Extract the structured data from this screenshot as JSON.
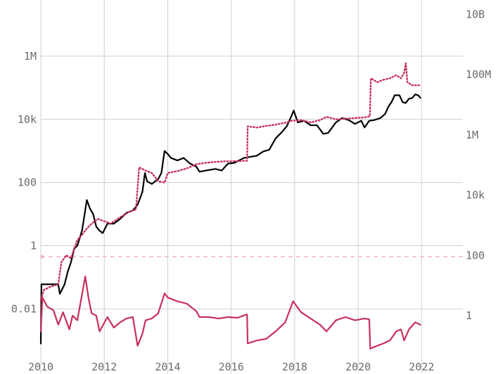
{
  "chart_data": {
    "type": "line",
    "title": "",
    "xlabel": "",
    "ylabel": "",
    "x_ticks": [
      "2010",
      "2012",
      "2014",
      "2016",
      "2018",
      "2020",
      "2022"
    ],
    "y_left_ticks": [
      "0.01",
      "1",
      "100",
      "10k",
      "1M"
    ],
    "y_right_ticks": [
      "1",
      "100",
      "10k",
      "1M",
      "100M",
      "10B"
    ],
    "xlim": [
      2010.0,
      2023.3
    ],
    "ylim_left": [
      0.00055,
      60000000
    ],
    "ylim_right": [
      0.08,
      30000000000
    ],
    "y_scale": "log",
    "grid": true,
    "colors": {
      "price": "#000000",
      "model": "#c8305b",
      "ratio": "#c8305b",
      "reference": "#f2b3c3"
    },
    "series": [
      {
        "axis": "left",
        "style": "solid",
        "color": "#000000",
        "points": [
          [
            2010.0,
            0.0008
          ],
          [
            2010.02,
            0.06
          ],
          [
            2010.3,
            0.06
          ],
          [
            2010.55,
            0.06
          ],
          [
            2010.6,
            0.03
          ],
          [
            2010.75,
            0.06
          ],
          [
            2010.85,
            0.15
          ],
          [
            2010.95,
            0.3
          ],
          [
            2011.05,
            0.8
          ],
          [
            2011.15,
            1.0
          ],
          [
            2011.3,
            3.0
          ],
          [
            2011.38,
            10
          ],
          [
            2011.45,
            28
          ],
          [
            2011.55,
            15
          ],
          [
            2011.65,
            10
          ],
          [
            2011.75,
            4
          ],
          [
            2011.85,
            3
          ],
          [
            2011.95,
            2.5
          ],
          [
            2012.1,
            5
          ],
          [
            2012.3,
            5
          ],
          [
            2012.5,
            7
          ],
          [
            2012.7,
            11
          ],
          [
            2012.9,
            13
          ],
          [
            2013.05,
            20
          ],
          [
            2013.2,
            50
          ],
          [
            2013.28,
            200
          ],
          [
            2013.35,
            110
          ],
          [
            2013.5,
            90
          ],
          [
            2013.7,
            130
          ],
          [
            2013.8,
            200
          ],
          [
            2013.9,
            1000
          ],
          [
            2014.0,
            800
          ],
          [
            2014.1,
            600
          ],
          [
            2014.3,
            500
          ],
          [
            2014.5,
            600
          ],
          [
            2014.7,
            400
          ],
          [
            2014.9,
            320
          ],
          [
            2015.0,
            220
          ],
          [
            2015.2,
            240
          ],
          [
            2015.5,
            270
          ],
          [
            2015.7,
            240
          ],
          [
            2015.9,
            400
          ],
          [
            2016.1,
            420
          ],
          [
            2016.4,
            600
          ],
          [
            2016.6,
            650
          ],
          [
            2016.8,
            700
          ],
          [
            2017.0,
            950
          ],
          [
            2017.2,
            1100
          ],
          [
            2017.4,
            2500
          ],
          [
            2017.6,
            4000
          ],
          [
            2017.75,
            6000
          ],
          [
            2017.9,
            13000
          ],
          [
            2017.97,
            19000
          ],
          [
            2018.1,
            8000
          ],
          [
            2018.3,
            9000
          ],
          [
            2018.5,
            6500
          ],
          [
            2018.7,
            6500
          ],
          [
            2018.9,
            3500
          ],
          [
            2019.05,
            3700
          ],
          [
            2019.3,
            8000
          ],
          [
            2019.5,
            11000
          ],
          [
            2019.7,
            9500
          ],
          [
            2019.9,
            7200
          ],
          [
            2020.1,
            9000
          ],
          [
            2020.2,
            5500
          ],
          [
            2020.35,
            9000
          ],
          [
            2020.5,
            9500
          ],
          [
            2020.7,
            11000
          ],
          [
            2020.85,
            15000
          ],
          [
            2020.95,
            25000
          ],
          [
            2021.05,
            35000
          ],
          [
            2021.15,
            58000
          ],
          [
            2021.3,
            58000
          ],
          [
            2021.4,
            35000
          ],
          [
            2021.5,
            33000
          ],
          [
            2021.6,
            45000
          ],
          [
            2021.7,
            47000
          ],
          [
            2021.8,
            62000
          ],
          [
            2021.9,
            57000
          ],
          [
            2021.96,
            48000
          ]
        ]
      },
      {
        "axis": "left",
        "style": "dotted",
        "color": "#c8305b",
        "points": [
          [
            2010.0,
            0.02
          ],
          [
            2010.1,
            0.04
          ],
          [
            2010.3,
            0.05
          ],
          [
            2010.55,
            0.06
          ],
          [
            2010.65,
            0.3
          ],
          [
            2010.8,
            0.5
          ],
          [
            2010.95,
            0.4
          ],
          [
            2011.05,
            0.8
          ],
          [
            2011.15,
            1.5
          ],
          [
            2011.3,
            2.2
          ],
          [
            2011.45,
            3.5
          ],
          [
            2011.6,
            5
          ],
          [
            2011.8,
            7
          ],
          [
            2012.0,
            6
          ],
          [
            2012.2,
            5
          ],
          [
            2012.5,
            8
          ],
          [
            2012.8,
            12
          ],
          [
            2013.0,
            14
          ],
          [
            2013.05,
            70
          ],
          [
            2013.1,
            300
          ],
          [
            2013.3,
            240
          ],
          [
            2013.5,
            200
          ],
          [
            2013.7,
            110
          ],
          [
            2013.9,
            100
          ],
          [
            2014.0,
            200
          ],
          [
            2014.3,
            230
          ],
          [
            2014.6,
            280
          ],
          [
            2014.9,
            380
          ],
          [
            2015.2,
            420
          ],
          [
            2015.5,
            450
          ],
          [
            2015.8,
            470
          ],
          [
            2016.0,
            470
          ],
          [
            2016.3,
            480
          ],
          [
            2016.5,
            490
          ],
          [
            2016.52,
            6000
          ],
          [
            2016.8,
            5500
          ],
          [
            2017.1,
            6200
          ],
          [
            2017.4,
            6800
          ],
          [
            2017.7,
            7800
          ],
          [
            2017.9,
            9000
          ],
          [
            2018.2,
            9500
          ],
          [
            2018.5,
            8000
          ],
          [
            2018.8,
            9500
          ],
          [
            2019.0,
            12000
          ],
          [
            2019.3,
            10000
          ],
          [
            2019.6,
            10500
          ],
          [
            2019.9,
            11000
          ],
          [
            2020.2,
            11500
          ],
          [
            2020.37,
            12500
          ],
          [
            2020.4,
            200000
          ],
          [
            2020.6,
            150000
          ],
          [
            2020.8,
            180000
          ],
          [
            2021.0,
            200000
          ],
          [
            2021.2,
            250000
          ],
          [
            2021.35,
            200000
          ],
          [
            2021.45,
            300000
          ],
          [
            2021.5,
            600000
          ],
          [
            2021.55,
            150000
          ],
          [
            2021.7,
            120000
          ],
          [
            2021.96,
            120000
          ]
        ]
      },
      {
        "axis": "right",
        "style": "solid",
        "color": "#c8305b",
        "points": [
          [
            2010.0,
            0.3
          ],
          [
            2010.05,
            4
          ],
          [
            2010.2,
            2
          ],
          [
            2010.4,
            1.5
          ],
          [
            2010.55,
            0.5
          ],
          [
            2010.7,
            1.3
          ],
          [
            2010.9,
            0.35
          ],
          [
            2011.0,
            1.0
          ],
          [
            2011.15,
            0.7
          ],
          [
            2011.3,
            5
          ],
          [
            2011.4,
            20
          ],
          [
            2011.5,
            4
          ],
          [
            2011.6,
            1.2
          ],
          [
            2011.75,
            1.0
          ],
          [
            2011.85,
            0.3
          ],
          [
            2012.1,
            0.9
          ],
          [
            2012.3,
            0.4
          ],
          [
            2012.5,
            0.6
          ],
          [
            2012.7,
            0.8
          ],
          [
            2012.9,
            0.9
          ],
          [
            2013.05,
            0.1
          ],
          [
            2013.2,
            0.25
          ],
          [
            2013.3,
            0.7
          ],
          [
            2013.5,
            0.8
          ],
          [
            2013.7,
            1.2
          ],
          [
            2013.9,
            5.5
          ],
          [
            2014.0,
            4
          ],
          [
            2014.3,
            3
          ],
          [
            2014.6,
            2.5
          ],
          [
            2014.9,
            1.4
          ],
          [
            2015.0,
            0.9
          ],
          [
            2015.3,
            0.9
          ],
          [
            2015.6,
            0.8
          ],
          [
            2015.9,
            0.9
          ],
          [
            2016.2,
            0.85
          ],
          [
            2016.5,
            1.1
          ],
          [
            2016.52,
            0.12
          ],
          [
            2016.8,
            0.15
          ],
          [
            2017.1,
            0.17
          ],
          [
            2017.4,
            0.3
          ],
          [
            2017.7,
            0.6
          ],
          [
            2017.95,
            3
          ],
          [
            2018.2,
            1.3
          ],
          [
            2018.5,
            0.8
          ],
          [
            2018.8,
            0.5
          ],
          [
            2019.0,
            0.3
          ],
          [
            2019.3,
            0.7
          ],
          [
            2019.6,
            0.9
          ],
          [
            2019.9,
            0.7
          ],
          [
            2020.2,
            0.8
          ],
          [
            2020.35,
            0.75
          ],
          [
            2020.38,
            0.08
          ],
          [
            2020.6,
            0.1
          ],
          [
            2020.8,
            0.12
          ],
          [
            2021.0,
            0.15
          ],
          [
            2021.2,
            0.3
          ],
          [
            2021.35,
            0.35
          ],
          [
            2021.45,
            0.15
          ],
          [
            2021.6,
            0.35
          ],
          [
            2021.8,
            0.6
          ],
          [
            2021.96,
            0.5
          ]
        ]
      }
    ],
    "reference_line": {
      "axis": "left",
      "value": 0.45,
      "style": "dashed",
      "color": "#f2b3c3"
    }
  }
}
